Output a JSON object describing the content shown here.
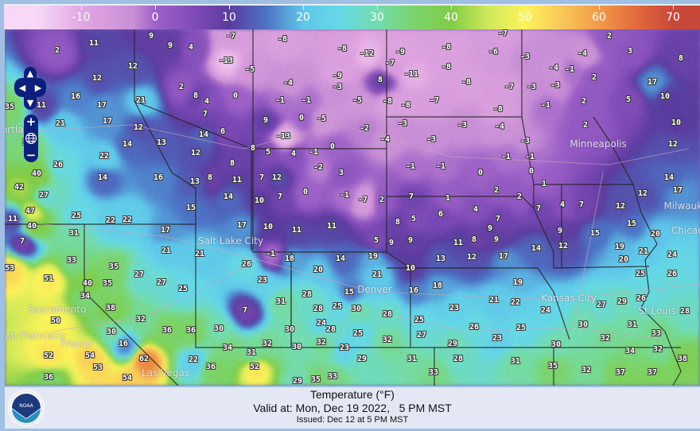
{
  "legend": {
    "unit": "°F",
    "ticks": [
      "-10",
      "0",
      "10",
      "20",
      "30",
      "40",
      "50",
      "60",
      "70"
    ],
    "colormap": [
      [
        -16,
        "#f7d8f7"
      ],
      [
        -10,
        "#e2a8e2"
      ],
      [
        -3,
        "#c98fd6"
      ],
      [
        0,
        "#9e62c8"
      ],
      [
        6,
        "#7a48b4"
      ],
      [
        10,
        "#5b3c9e"
      ],
      [
        15,
        "#4d72c4"
      ],
      [
        20,
        "#5fc6ea"
      ],
      [
        25,
        "#66d8e6"
      ],
      [
        30,
        "#74dcae"
      ],
      [
        35,
        "#7bd46c"
      ],
      [
        40,
        "#80cc46"
      ],
      [
        45,
        "#cfe85a"
      ],
      [
        50,
        "#fdf35a"
      ],
      [
        55,
        "#f8c758"
      ],
      [
        60,
        "#f29a48"
      ],
      [
        65,
        "#e26a3c"
      ],
      [
        70,
        "#c8483a"
      ]
    ]
  },
  "controls": {
    "pan_up": "▲",
    "pan_left": "◀",
    "pan_right": "▶",
    "pan_down": "▼",
    "zoom_in": "+",
    "zoom_out": "−",
    "world_icon": "globe-icon"
  },
  "caption": {
    "title": "Temperature (°F)",
    "valid": "Valid at: Mon, Dec 19 2022,   5 PM MST",
    "issued": "Issued: Dec 12 at 5 PM MST",
    "logo_text": "NOAA"
  },
  "cities": [
    "Portland",
    "Minneapolis",
    "Milwaukee",
    "Chicago",
    "Salt Lake City",
    "Denver",
    "Kansas City",
    "St Louis",
    "Sacramento",
    "San Francisco",
    "Fresno",
    "Las Vegas"
  ],
  "temperatures": [
    11,
    9,
    -7,
    -8,
    -8,
    -12,
    -9,
    -8,
    -6,
    -7,
    -3,
    2,
    3,
    8,
    2,
    9,
    4,
    -13,
    -5,
    -9,
    -7,
    -11,
    -8,
    -4,
    -1,
    2,
    -4,
    12,
    12,
    2,
    8,
    0,
    -4,
    -3,
    8,
    -8,
    -7,
    -3,
    -3,
    17,
    5,
    16,
    17,
    21,
    4,
    -1,
    -1,
    -5,
    -8,
    -8,
    -7,
    -8,
    -1,
    2,
    2,
    10,
    11,
    35,
    21,
    17,
    12,
    7,
    9,
    0,
    -5,
    -2,
    -3,
    -3,
    -4,
    -3,
    10,
    34,
    14,
    13,
    14,
    6,
    -13,
    -4,
    -3,
    12,
    26,
    22,
    12,
    8,
    5,
    4,
    -1,
    0,
    -1,
    -1,
    0,
    -1,
    -1,
    0,
    40,
    14,
    16,
    13,
    8,
    8,
    11,
    7,
    12,
    -2,
    3,
    2,
    2,
    1,
    14,
    42,
    27,
    14,
    10,
    7,
    0,
    -1,
    -7,
    2,
    7,
    1,
    4,
    7,
    4,
    7,
    7,
    12,
    12,
    17,
    47,
    25,
    15,
    8,
    5,
    6,
    11,
    40,
    22,
    22,
    17,
    10,
    11,
    11,
    9,
    15,
    15,
    20,
    31,
    17,
    5,
    9,
    9,
    11,
    8,
    9,
    9,
    7,
    21,
    21,
    26,
    -1,
    18,
    14,
    19,
    13,
    12,
    17,
    14,
    12,
    19,
    20,
    21,
    24,
    53,
    33,
    35,
    27,
    20,
    10,
    23,
    21,
    18,
    16,
    19,
    25,
    26,
    51,
    40,
    35,
    27,
    25,
    28,
    15,
    22,
    21,
    26,
    29,
    27,
    34,
    38,
    31,
    28,
    23,
    25,
    24,
    28,
    50,
    32,
    36,
    36,
    30,
    28,
    25,
    30,
    7,
    24,
    30,
    26,
    25,
    30,
    31,
    30,
    32,
    28,
    25,
    32,
    27,
    23,
    32,
    33,
    16,
    54,
    52,
    62,
    34,
    31,
    30,
    32,
    23,
    29,
    30,
    34,
    32,
    53,
    22,
    29,
    31,
    28,
    31,
    35,
    36,
    54,
    52,
    36,
    33,
    32,
    37,
    37,
    38,
    35,
    29,
    33,
    34
  ]
}
